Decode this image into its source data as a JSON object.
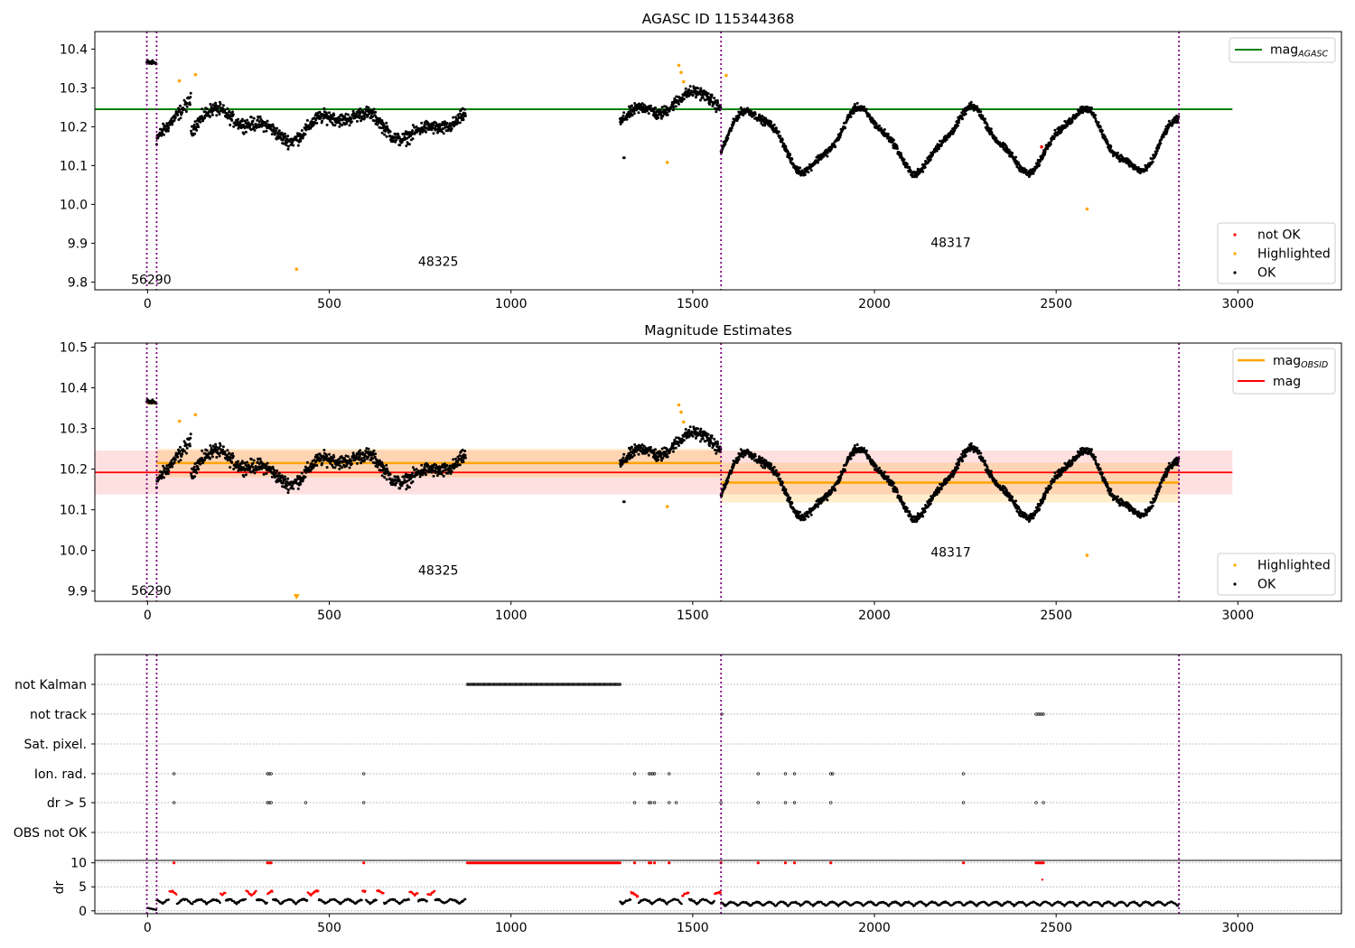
{
  "colors": {
    "ok": "#000000",
    "not_ok": "#ff0000",
    "highlighted": "#ffa500",
    "mag_agasc": "#008000",
    "mag_obsid": "#ffa500",
    "mag": "#ff0000",
    "obsid_line": "#800080"
  },
  "chart_data": [
    {
      "type": "scatter",
      "title": "AGASC ID 115344368",
      "xlim": [
        -145,
        3285
      ],
      "ylim": [
        9.78,
        10.445
      ],
      "xticks": [
        0,
        500,
        1000,
        1500,
        2000,
        2500,
        3000
      ],
      "yticks": [
        9.8,
        9.9,
        10.0,
        10.1,
        10.2,
        10.3,
        10.4
      ],
      "ytick_labels": [
        "9.8",
        "9.9",
        "10.0",
        "10.1",
        "10.2",
        "10.3",
        "10.4"
      ],
      "obsid_boundaries": [
        -2,
        25,
        1578,
        2838
      ],
      "obsid_labels": [
        {
          "text": "56290",
          "x": 10,
          "y": 9.795
        },
        {
          "text": "48325",
          "x": 800,
          "y": 9.842
        },
        {
          "text": "48317",
          "x": 2210,
          "y": 9.89
        }
      ],
      "mag_agasc": {
        "value": 10.245,
        "x": [
          -145,
          2985
        ]
      },
      "highlighted": [
        [
          88,
          10.318
        ],
        [
          132,
          10.334
        ],
        [
          410,
          9.833
        ],
        [
          1430,
          10.108
        ],
        [
          1462,
          10.358
        ],
        [
          1468,
          10.34
        ],
        [
          1475,
          10.316
        ],
        [
          1592,
          10.332
        ],
        [
          2585,
          9.988
        ]
      ],
      "not_ok": [
        [
          2460,
          10.148
        ]
      ],
      "legend_upper": {
        "line": "mag",
        "subscript": "AGASC"
      },
      "legend_lower": [
        "not OK",
        "Highlighted",
        "OK"
      ]
    },
    {
      "type": "scatter",
      "title": "Magnitude Estimates",
      "xlim": [
        -145,
        3285
      ],
      "ylim": [
        9.875,
        10.51
      ],
      "xticks": [
        0,
        500,
        1000,
        1500,
        2000,
        2500,
        3000
      ],
      "yticks": [
        9.9,
        10.0,
        10.1,
        10.2,
        10.3,
        10.4,
        10.5
      ],
      "ytick_labels": [
        "9.9",
        "10.0",
        "10.1",
        "10.2",
        "10.3",
        "10.4",
        "10.5"
      ],
      "obsid_boundaries": [
        -2,
        25,
        1578,
        2838
      ],
      "obsid_labels": [
        {
          "text": "56290",
          "x": 10,
          "y": 9.89
        },
        {
          "text": "48325",
          "x": 800,
          "y": 9.94
        },
        {
          "text": "48317",
          "x": 2210,
          "y": 9.985
        }
      ],
      "mag": {
        "value": 10.192,
        "band": [
          10.138,
          10.246
        ],
        "x": [
          -145,
          2985
        ]
      },
      "mag_obsid": [
        {
          "x": [
            -2,
            25
          ],
          "value": 10.362
        },
        {
          "x": [
            25,
            1578
          ],
          "value": 10.215,
          "band": [
            10.18,
            10.25
          ]
        },
        {
          "x": [
            1578,
            2838
          ],
          "value": 10.167,
          "band": [
            10.118,
            10.216
          ]
        }
      ],
      "highlighted": [
        [
          88,
          10.318
        ],
        [
          132,
          10.334
        ],
        [
          410,
          9.88
        ],
        [
          1430,
          10.108
        ],
        [
          1462,
          10.358
        ],
        [
          1468,
          10.34
        ],
        [
          1475,
          10.316
        ],
        [
          2585,
          9.988
        ]
      ],
      "legend_upper": [
        {
          "text": "mag",
          "subscript": "OBSID"
        },
        {
          "text": "mag"
        }
      ],
      "legend_lower": [
        "Highlighted",
        "OK"
      ]
    },
    {
      "type": "scatter",
      "title": "",
      "xlim": [
        -145,
        3285
      ],
      "xticks": [
        0,
        500,
        1000,
        1500,
        2000,
        2500,
        3000
      ],
      "flag_categories": [
        "not Kalman",
        "not track",
        "Sat. pixel.",
        "Ion. rad.",
        "dr > 5",
        "OBS not OK"
      ],
      "flag_points": {
        "not Kalman": {
          "ranges": [
            [
              880,
              1300
            ]
          ]
        },
        "not track": {
          "points": [
            1580,
            2445,
            2450,
            2455,
            2460,
            2465
          ]
        },
        "Sat. pixel.": {
          "points": []
        },
        "Ion. rad.": {
          "points": [
            73,
            330,
            335,
            340,
            595,
            1340,
            1380,
            1385,
            1390,
            1395,
            1435,
            1680,
            1755,
            1780,
            1880,
            1885,
            2245
          ]
        },
        "dr > 5": {
          "points": [
            73,
            330,
            335,
            340,
            435,
            595,
            1340,
            1380,
            1385,
            1395,
            1435,
            1455,
            1578,
            1680,
            1755,
            1780,
            1880,
            2245,
            2445,
            2465
          ]
        },
        "OBS not OK": {
          "points": []
        }
      },
      "dr": {
        "ylabel": "dr",
        "ylim": [
          -0.6,
          10.5
        ],
        "yticks": [
          0,
          5,
          10
        ],
        "ytick_labels": [
          "0",
          "5",
          "10"
        ],
        "clip_value": 10,
        "clipped_x": [
          73,
          330,
          335,
          340,
          595,
          1340,
          1380,
          1385,
          1395,
          1435,
          1578,
          1680,
          1755,
          1780,
          1880,
          2245,
          2445,
          2450,
          2455,
          2460,
          2465
        ],
        "clipped_ranges": [
          [
            880,
            1300
          ]
        ]
      }
    }
  ]
}
